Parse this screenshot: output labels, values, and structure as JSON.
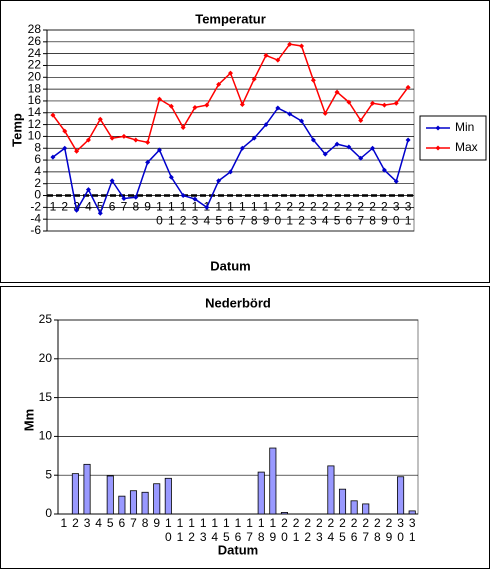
{
  "chart_data": [
    {
      "type": "line",
      "title": "Temperatur",
      "x_label": "Datum",
      "y_label": "Temp",
      "categories": [
        "1",
        "2",
        "3",
        "4",
        "5",
        "6",
        "7",
        "8",
        "9",
        "10",
        "11",
        "12",
        "13",
        "14",
        "15",
        "16",
        "17",
        "18",
        "19",
        "20",
        "21",
        "22",
        "23",
        "24",
        "25",
        "26",
        "27",
        "28",
        "29",
        "30",
        "31"
      ],
      "series": [
        {
          "name": "Min",
          "color": "#0000cc",
          "values": [
            6.5,
            8,
            -2.5,
            1,
            -3,
            2.5,
            -0.5,
            -0.3,
            5.6,
            7.7,
            3.1,
            0,
            -0.6,
            -2,
            2.5,
            4,
            8,
            9.7,
            12,
            14.8,
            13.8,
            12.6,
            9.4,
            7,
            8.7,
            8.2,
            6.3,
            8,
            4.3,
            2.4,
            9.4
          ]
        },
        {
          "name": "Max",
          "color": "#ff0000",
          "values": [
            13.6,
            10.9,
            7.5,
            9.4,
            12.9,
            9.7,
            10,
            9.4,
            9,
            16.3,
            15.1,
            11.5,
            14.9,
            15.3,
            18.8,
            20.7,
            15.4,
            19.7,
            23.7,
            22.9,
            25.6,
            25.3,
            19.5,
            13.9,
            17.5,
            15.8,
            12.7,
            15.6,
            15.3,
            15.6,
            18.3
          ]
        }
      ],
      "ylim": [
        -6,
        28
      ],
      "yticks": [
        -6,
        -4,
        -2,
        0,
        2,
        4,
        6,
        8,
        10,
        12,
        14,
        16,
        18,
        20,
        22,
        24,
        26,
        28
      ],
      "grid": true,
      "legend": "right"
    },
    {
      "type": "bar",
      "title": "Nederbörd",
      "x_label": "Datum",
      "y_label": "Mm",
      "categories": [
        "1",
        "2",
        "3",
        "4",
        "5",
        "6",
        "7",
        "8",
        "9",
        "10",
        "11",
        "12",
        "13",
        "14",
        "15",
        "16",
        "17",
        "18",
        "19",
        "20",
        "21",
        "22",
        "23",
        "24",
        "25",
        "26",
        "27",
        "28",
        "29",
        "30",
        "31"
      ],
      "values": [
        0,
        5.2,
        6.4,
        0,
        4.9,
        2.3,
        3,
        2.8,
        3.9,
        4.6,
        0,
        0,
        0,
        0,
        0,
        0,
        0,
        5.4,
        8.5,
        0.2,
        0,
        0,
        0,
        6.2,
        3.2,
        1.7,
        1.3,
        0,
        0,
        4.8,
        0.4
      ],
      "color": "#9999ff",
      "ylim": [
        0,
        25
      ],
      "yticks": [
        0,
        5,
        10,
        15,
        20,
        25
      ],
      "grid": true
    }
  ]
}
